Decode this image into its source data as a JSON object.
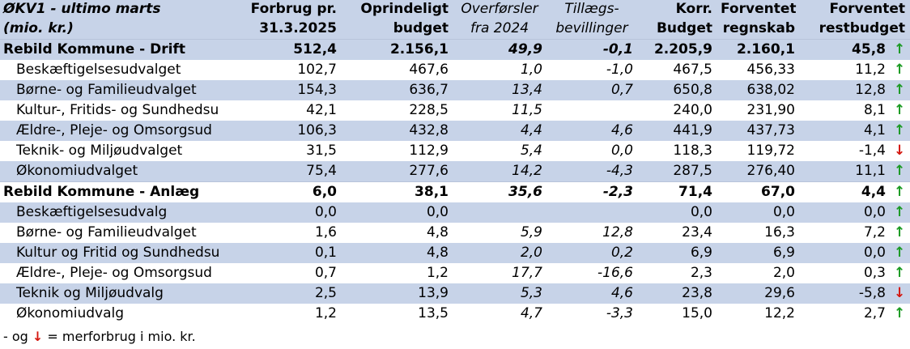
{
  "header": {
    "col0": [
      "ØKV1 - ultimo marts",
      "(mio. kr.)"
    ],
    "col1": [
      "Forbrug pr.",
      "31.3.2025"
    ],
    "col2": [
      "Oprindeligt",
      "budget"
    ],
    "col3": [
      "Overførsler",
      "fra 2024"
    ],
    "col4": [
      "Tillægs-",
      "bevillinger"
    ],
    "col5": [
      "Korr.",
      "Budget"
    ],
    "col6": [
      "Forventet",
      "regnskab"
    ],
    "col7": [
      "Forventet",
      "restbudget"
    ]
  },
  "rows": [
    {
      "name": "Rebild Kommune - Drift",
      "forbrug": "512,4",
      "budget": "2.156,1",
      "overf": "49,9",
      "tillaeg": "-0,1",
      "korr": "2.205,9",
      "regnskab": "2.160,1",
      "rest": "45,8",
      "arrow": "↑"
    },
    {
      "name": "Beskæftigelsesudvalget",
      "forbrug": "102,7",
      "budget": "467,6",
      "overf": "1,0",
      "tillaeg": "-1,0",
      "korr": "467,5",
      "regnskab": "456,33",
      "rest": "11,2",
      "arrow": "↑"
    },
    {
      "name": "Børne- og Familieudvalget",
      "forbrug": "154,3",
      "budget": "636,7",
      "overf": "13,4",
      "tillaeg": "0,7",
      "korr": "650,8",
      "regnskab": "638,02",
      "rest": "12,8",
      "arrow": "↑"
    },
    {
      "name": "Kultur-, Fritids- og Sundhedsu",
      "forbrug": "42,1",
      "budget": "228,5",
      "overf": "11,5",
      "tillaeg": "",
      "korr": "240,0",
      "regnskab": "231,90",
      "rest": "8,1",
      "arrow": "↑"
    },
    {
      "name": "Ældre-, Pleje- og Omsorgsud",
      "forbrug": "106,3",
      "budget": "432,8",
      "overf": "4,4",
      "tillaeg": "4,6",
      "korr": "441,9",
      "regnskab": "437,73",
      "rest": "4,1",
      "arrow": "↑"
    },
    {
      "name": "Teknik- og Miljøudvalget",
      "forbrug": "31,5",
      "budget": "112,9",
      "overf": "5,4",
      "tillaeg": "0,0",
      "korr": "118,3",
      "regnskab": "119,72",
      "rest": "-1,4",
      "arrow": "↓"
    },
    {
      "name": "Økonomiudvalget",
      "forbrug": "75,4",
      "budget": "277,6",
      "overf": "14,2",
      "tillaeg": "-4,3",
      "korr": "287,5",
      "regnskab": "276,40",
      "rest": "11,1",
      "arrow": "↑"
    },
    {
      "name": "Rebild Kommune - Anlæg",
      "forbrug": "6,0",
      "budget": "38,1",
      "overf": "35,6",
      "tillaeg": "-2,3",
      "korr": "71,4",
      "regnskab": "67,0",
      "rest": "4,4",
      "arrow": "↑"
    },
    {
      "name": "Beskæftigelsesudvalg",
      "forbrug": "0,0",
      "budget": "0,0",
      "overf": "",
      "tillaeg": "",
      "korr": "0,0",
      "regnskab": "0,0",
      "rest": "0,0",
      "arrow": "↑"
    },
    {
      "name": "Børne- og Familieudvalget",
      "forbrug": "1,6",
      "budget": "4,8",
      "overf": "5,9",
      "tillaeg": "12,8",
      "korr": "23,4",
      "regnskab": "16,3",
      "rest": "7,2",
      "arrow": "↑"
    },
    {
      "name": "Kultur og Fritid og Sundhedsu",
      "forbrug": "0,1",
      "budget": "4,8",
      "overf": "2,0",
      "tillaeg": "0,2",
      "korr": "6,9",
      "regnskab": "6,9",
      "rest": "0,0",
      "arrow": "↑"
    },
    {
      "name": "Ældre-, Pleje- og Omsorgsud",
      "forbrug": "0,7",
      "budget": "1,2",
      "overf": "17,7",
      "tillaeg": "-16,6",
      "korr": "2,3",
      "regnskab": "2,0",
      "rest": "0,3",
      "arrow": "↑"
    },
    {
      "name": "Teknik og Miljøudvalg",
      "forbrug": "2,5",
      "budget": "13,9",
      "overf": "5,3",
      "tillaeg": "4,6",
      "korr": "23,8",
      "regnskab": "29,6",
      "rest": "-5,8",
      "arrow": "↓"
    },
    {
      "name": "Økonomiudvalg",
      "forbrug": "1,2",
      "budget": "13,5",
      "overf": "4,7",
      "tillaeg": "-3,3",
      "korr": "15,0",
      "regnskab": "12,2",
      "rest": "2,7",
      "arrow": "↑"
    }
  ],
  "footnote": {
    "prefix": "- og",
    "arrow": "↓",
    "suffix": "= merforbrug i mio. kr."
  },
  "colors": {
    "header_bg": "#c7d3e8",
    "up": "#1a9a22",
    "down": "#d4170f"
  }
}
